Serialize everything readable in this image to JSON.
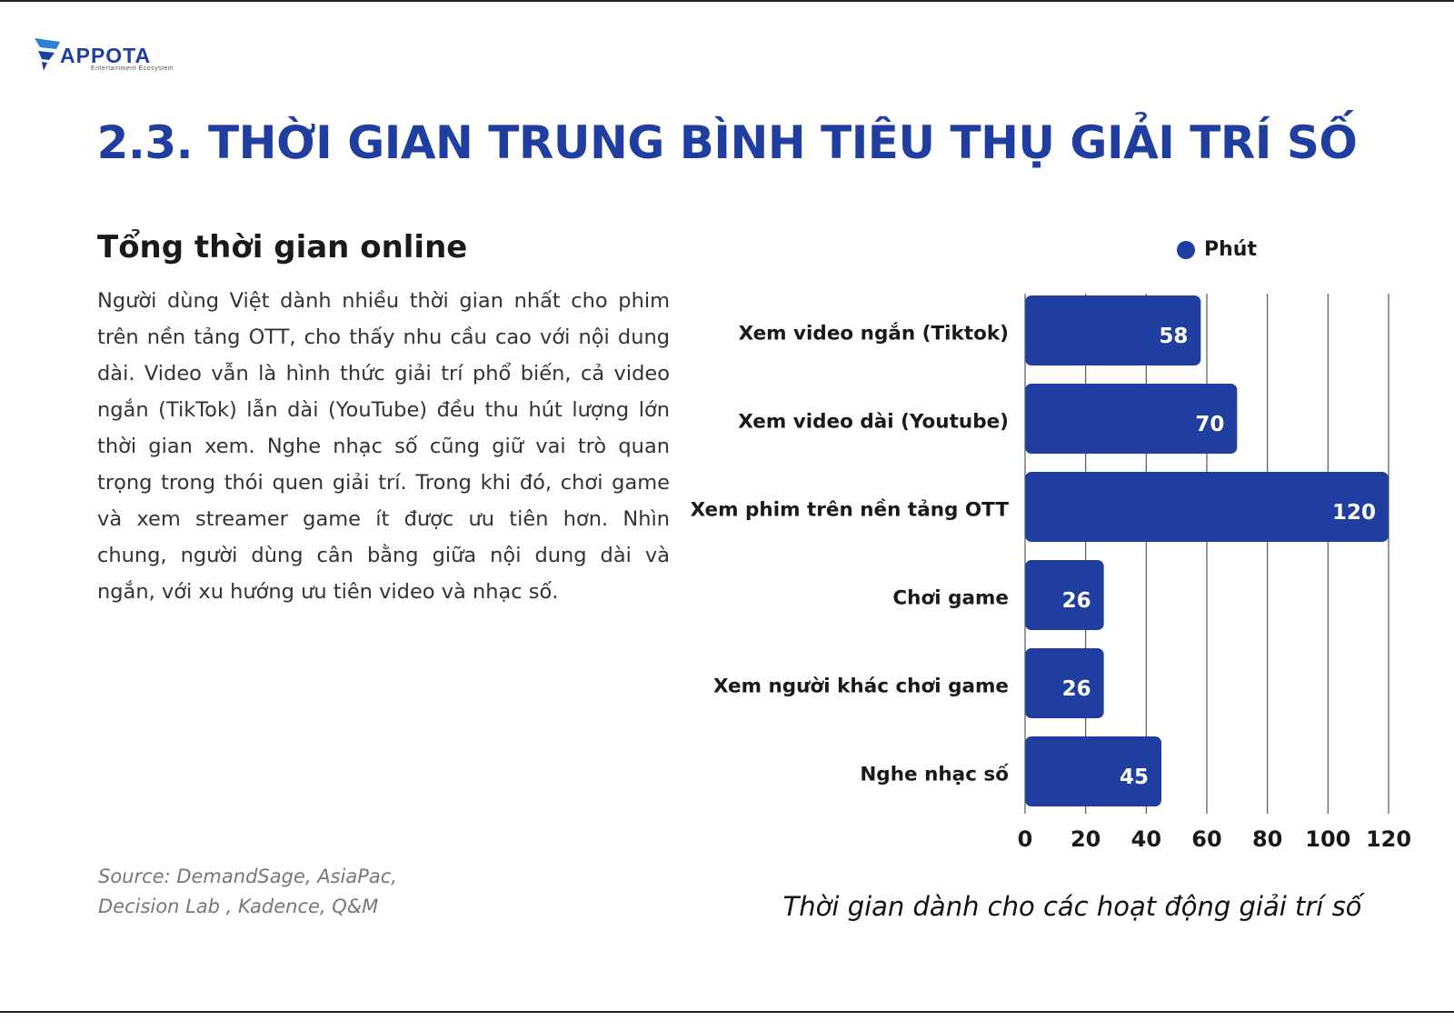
{
  "logo": {
    "name": "APPOTA",
    "tagline": "Entertainment Ecosystem"
  },
  "page": {
    "title": "2.3. THỜI GIAN TRUNG BÌNH TIÊU THỤ GIẢI TRÍ SỐ"
  },
  "section": {
    "heading": "Tổng thời gian online",
    "body": "Người dùng Việt dành nhiều thời gian nhất cho phim trên nền tảng OTT, cho thấy nhu cầu cao với nội dung dài. Video vẫn là hình thức giải trí phổ biến, cả video ngắn (TikTok) lẫn dài (YouTube) đều thu hút lượng lớn thời gian xem. Nghe nhạc số cũng giữ vai trò quan trọng trong thói quen giải trí. Trong khi đó, chơi game và xem streamer game ít được ưu tiên hơn. Nhìn chung, người dùng cân bằng giữa nội dung dài và ngắn, với xu hướng ưu tiên video và nhạc số."
  },
  "source": {
    "text": "Source: DemandSage, AsiaPac, Decision Lab , Kadence, Q&M"
  },
  "chart_data": {
    "type": "bar",
    "orientation": "horizontal",
    "categories": [
      "Xem video ngắn (Tiktok)",
      "Xem video dài (Youtube)",
      "Xem phim trên nền tảng OTT",
      "Chơi game",
      "Xem người khác chơi game",
      "Nghe nhạc số"
    ],
    "series": [
      {
        "name": "Phút",
        "values": [
          58,
          70,
          120,
          26,
          26,
          45
        ],
        "color": "#1f3ea0"
      }
    ],
    "xlim": [
      0,
      120
    ],
    "xticks": [
      0,
      20,
      40,
      60,
      80,
      100,
      120
    ],
    "grid": "vertical",
    "legend": "top-right",
    "data_labels": "inside-end",
    "caption": "Thời gian dành cho các hoạt động giải trí số"
  },
  "colors": {
    "brand": "#1f3ea0",
    "grid": "#555555"
  }
}
